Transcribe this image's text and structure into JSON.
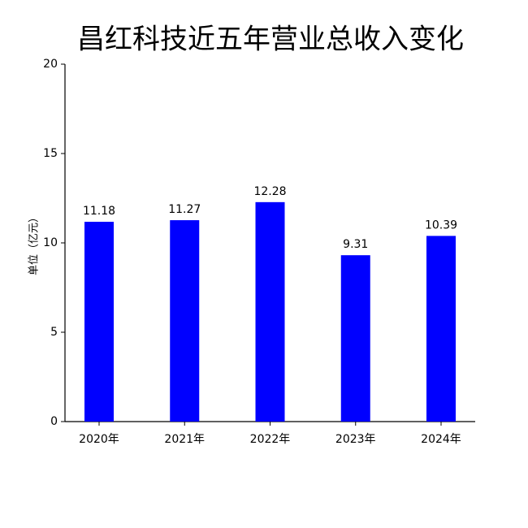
{
  "chart_data": {
    "type": "bar",
    "title": "昌红科技近五年营业总收入变化",
    "ylabel": "单位（亿元）",
    "categories": [
      "2020年",
      "2021年",
      "2022年",
      "2023年",
      "2024年"
    ],
    "values": [
      11.18,
      11.27,
      12.28,
      9.31,
      10.39
    ],
    "color": "#0000ff",
    "ylim": [
      0,
      20
    ],
    "yticks": [
      0,
      5,
      10,
      15,
      20
    ],
    "grid": false
  }
}
